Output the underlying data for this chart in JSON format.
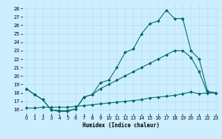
{
  "xlabel": "Humidex (Indice chaleur)",
  "bg_color": "#cceeff",
  "line_color": "#006666",
  "grid_color": "#aadddd",
  "xlim": [
    -0.5,
    23.5
  ],
  "ylim": [
    15.5,
    28.5
  ],
  "xticks": [
    0,
    1,
    2,
    3,
    4,
    5,
    6,
    7,
    8,
    9,
    10,
    11,
    12,
    13,
    14,
    15,
    16,
    17,
    18,
    19,
    20,
    21,
    22,
    23
  ],
  "yticks": [
    16,
    17,
    18,
    19,
    20,
    21,
    22,
    23,
    24,
    25,
    26,
    27,
    28
  ],
  "line1_x": [
    0,
    1,
    2,
    3,
    4,
    5,
    6,
    7,
    8,
    9,
    10,
    11,
    12,
    13,
    14,
    15,
    16,
    17,
    18,
    19
  ],
  "line1_y": [
    18.5,
    17.8,
    17.2,
    16.0,
    15.8,
    15.8,
    16.1,
    17.5,
    17.8,
    19.2,
    19.5,
    21.0,
    22.8,
    23.2,
    25.0,
    26.2,
    26.5,
    27.8,
    26.8,
    26.8
  ],
  "line2_x": [
    19,
    20,
    21,
    22,
    23
  ],
  "line2_y": [
    26.8,
    23.0,
    22.0,
    18.2,
    18.0
  ],
  "line3_x": [
    0,
    1,
    2,
    3,
    4,
    5,
    6,
    7,
    8,
    9,
    10,
    11,
    12,
    13,
    14,
    15,
    16,
    17,
    18,
    19,
    20,
    21,
    22,
    23
  ],
  "line3_y": [
    18.5,
    17.8,
    17.2,
    16.0,
    15.9,
    15.9,
    16.1,
    17.5,
    17.8,
    18.5,
    19.0,
    19.5,
    20.0,
    20.5,
    21.0,
    21.5,
    22.0,
    22.5,
    23.0,
    23.0,
    22.2,
    20.5,
    18.0,
    18.0
  ],
  "line4_x": [
    0,
    1,
    2,
    3,
    4,
    5,
    6,
    7,
    8,
    9,
    10,
    11,
    12,
    13,
    14,
    15,
    16,
    17,
    18,
    19,
    20,
    21,
    22,
    23
  ],
  "line4_y": [
    16.2,
    16.2,
    16.3,
    16.3,
    16.3,
    16.3,
    16.4,
    16.5,
    16.6,
    16.7,
    16.8,
    16.9,
    17.0,
    17.1,
    17.2,
    17.4,
    17.5,
    17.6,
    17.7,
    17.9,
    18.1,
    17.9,
    18.0,
    18.0
  ],
  "marker_size": 2.5,
  "tick_fontsize": 5,
  "xlabel_fontsize": 5.5
}
